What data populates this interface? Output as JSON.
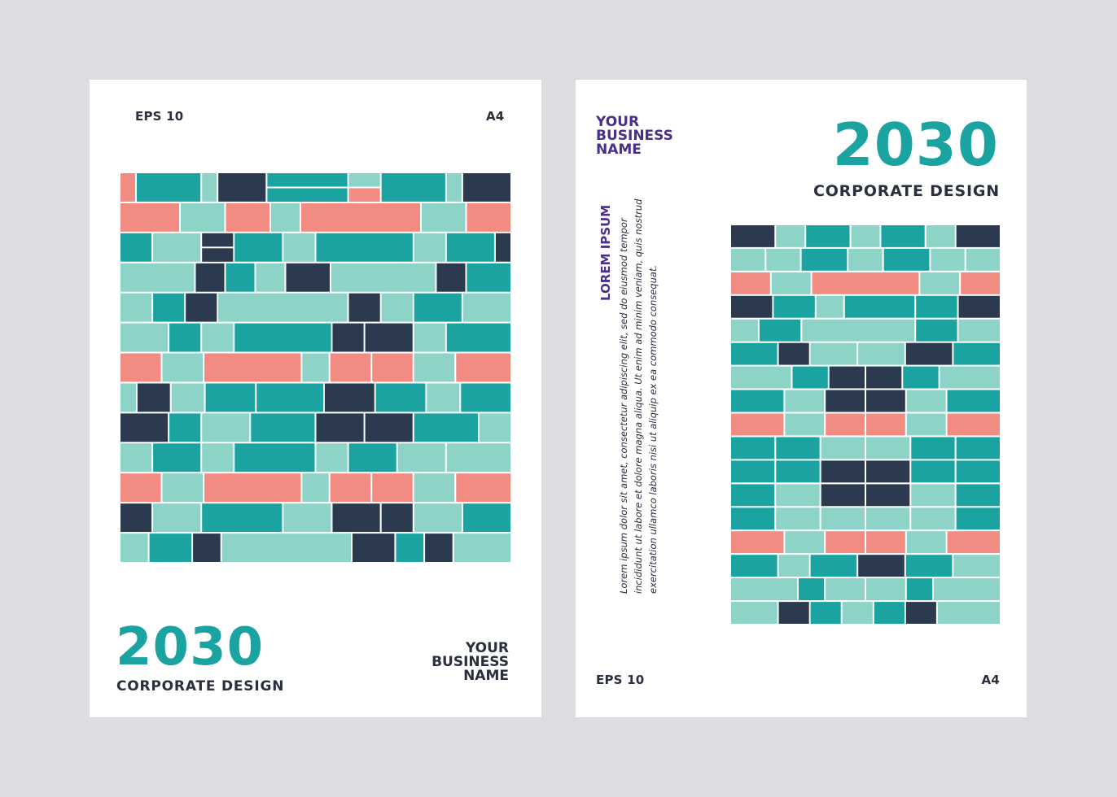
{
  "page1": {
    "format_label": "EPS 10",
    "size_label": "A4",
    "year": "2030",
    "subtitle": "CORPORATE DESIGN",
    "business_lines": [
      "YOUR",
      "BUSINESS",
      "NAME"
    ]
  },
  "page2": {
    "business_lines": [
      "YOUR",
      "BUSINESS",
      "NAME"
    ],
    "year": "2030",
    "subtitle": "CORPORATE DESIGN",
    "lorem_heading": "LOREM IPSUM",
    "lorem_lines": [
      "Lorem ipsum dolor sit amet, consectetur adipiscing elit, sed do eiusmod tempor",
      "incididunt ut labore et dolore magna aliqua. Ut enim ad minim veniam, quis nostrud",
      "exercitation ullamco laboris nisi ut aliquip ex ea commodo consequat."
    ],
    "format_label": "EPS 10",
    "size_label": "A4"
  },
  "colors": {
    "background": "#dcdde0",
    "teal": "#1aa3a0",
    "mint": "#8dd3c7",
    "salmon": "#f28c82",
    "navy": "#2c3a4f",
    "purple": "#4a2e8a",
    "text_dark": "#2a2f3e"
  }
}
